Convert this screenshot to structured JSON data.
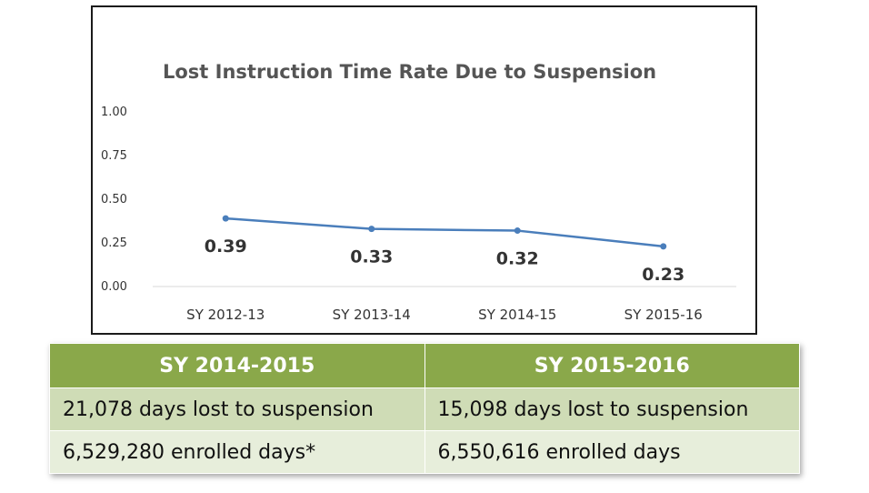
{
  "chart_data": {
    "type": "line",
    "title": "Lost Instruction Time Rate Due to Suspension",
    "categories": [
      "SY 2012-13",
      "SY 2013-14",
      "SY 2014-15",
      "SY 2015-16"
    ],
    "series": [
      {
        "values": [
          0.39,
          0.33,
          0.32,
          0.23
        ],
        "color": "#4a7ebb"
      }
    ],
    "data_labels": [
      "0.39",
      "0.33",
      "0.32",
      "0.23"
    ],
    "y_ticks": [
      "1.00",
      "0.75",
      "0.50",
      "0.25",
      "0.00"
    ],
    "ylim": [
      0,
      1
    ],
    "xlabel": "",
    "ylabel": "",
    "grid": false,
    "legend": "none"
  },
  "table": {
    "headers": [
      "SY 2014-2015",
      "SY 2015-2016"
    ],
    "rows": [
      [
        "21,078 days lost to suspension",
        "15,098 days lost to suspension"
      ],
      [
        "6,529,280 enrolled days*",
        "6,550,616 enrolled days"
      ]
    ],
    "header_color": "#8aa84a",
    "row_colors": [
      "#cfdcb6",
      "#e7eedb"
    ]
  }
}
